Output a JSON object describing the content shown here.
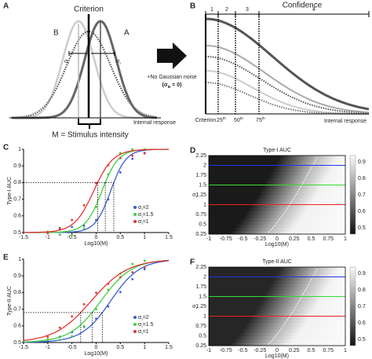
{
  "A": {
    "letter": "A",
    "title": "Criterion",
    "dist_b": "B",
    "dist_a": "A",
    "sigma_left": {
      "base": "σ",
      "sub": "I"
    },
    "sigma_right": {
      "base": "σ",
      "sub": "I"
    },
    "x_label": "Internal response",
    "bracket_label": "M = Stimulus intensity"
  },
  "arrow": {
    "line1": "+No Gaussian noise",
    "line2": {
      "open": "(σ",
      "sub": "B",
      "close": " = 0)"
    }
  },
  "B": {
    "letter": "B",
    "title": "Confidence",
    "bins": [
      "1",
      "2",
      "3",
      "4"
    ],
    "ticks": [
      "Criterion",
      {
        "base": "25",
        "sup": "th"
      },
      {
        "base": "50",
        "sup": "th"
      },
      {
        "base": "75",
        "sup": "th"
      }
    ],
    "x_label": "Internal response"
  },
  "C": {
    "letter": "C",
    "y_label": "Type-I AUC",
    "x_label": "Log10(M)",
    "yticks": [
      "0.5",
      "0.6",
      "0.7",
      "0.8",
      "0.9",
      "1"
    ],
    "xticks": [
      "-1.5",
      "-1",
      "-0.5",
      "0",
      "0.5",
      "1",
      "1.5"
    ],
    "legend": [
      {
        "base": "σ",
        "sub": "I",
        "rest": "=2"
      },
      {
        "base": "σ",
        "sub": "I",
        "rest": "=1.5"
      },
      {
        "base": "σ",
        "sub": "I",
        "rest": "=1"
      }
    ]
  },
  "D": {
    "letter": "D",
    "title": "Type-I AUC",
    "y_label": {
      "base": "σ",
      "sub": "I"
    },
    "x_label": "Log10(M)",
    "yticks": [
      "0.25",
      "0.5",
      "0.75",
      "1",
      "1.25",
      "1.5",
      "1.75",
      "2",
      "2.25"
    ],
    "xticks": [
      "-1",
      "-0.75",
      "-0.5",
      "-0.25",
      "0",
      "0.25",
      "0.5",
      "0.75",
      "1"
    ],
    "colorbar_ticks": [
      "0.5",
      "0.6",
      "0.7",
      "0.8",
      "0.9"
    ]
  },
  "E": {
    "letter": "E",
    "y_label": "Type-II AUC",
    "x_label": "Log10(M)",
    "yticks": [
      "0.5",
      "0.6",
      "0.7",
      "0.8",
      "0.9",
      "1"
    ],
    "xticks": [
      "-1.5",
      "-1",
      "-0.5",
      "0",
      "0.5",
      "1",
      "1.5"
    ],
    "legend": [
      {
        "base": "σ",
        "sub": "I",
        "rest": "=2"
      },
      {
        "base": "σ",
        "sub": "I",
        "rest": "=1.5"
      },
      {
        "base": "σ",
        "sub": "I",
        "rest": "=1"
      }
    ]
  },
  "F": {
    "letter": "F",
    "title": "Type-II AUC",
    "y_label": {
      "base": "σ",
      "sub": "I"
    },
    "x_label": "Log10(M)",
    "yticks": [
      "0.25",
      "0.5",
      "0.75",
      "1",
      "1.25",
      "1.5",
      "1.75",
      "2",
      "2.25"
    ],
    "xticks": [
      "-1",
      "-0.75",
      "-0.5",
      "-0.25",
      "0",
      "0.25",
      "0.5",
      "0.75",
      "1"
    ],
    "colorbar_ticks": [
      "0.5",
      "0.6",
      "0.7",
      "0.8",
      "0.9"
    ]
  }
}
